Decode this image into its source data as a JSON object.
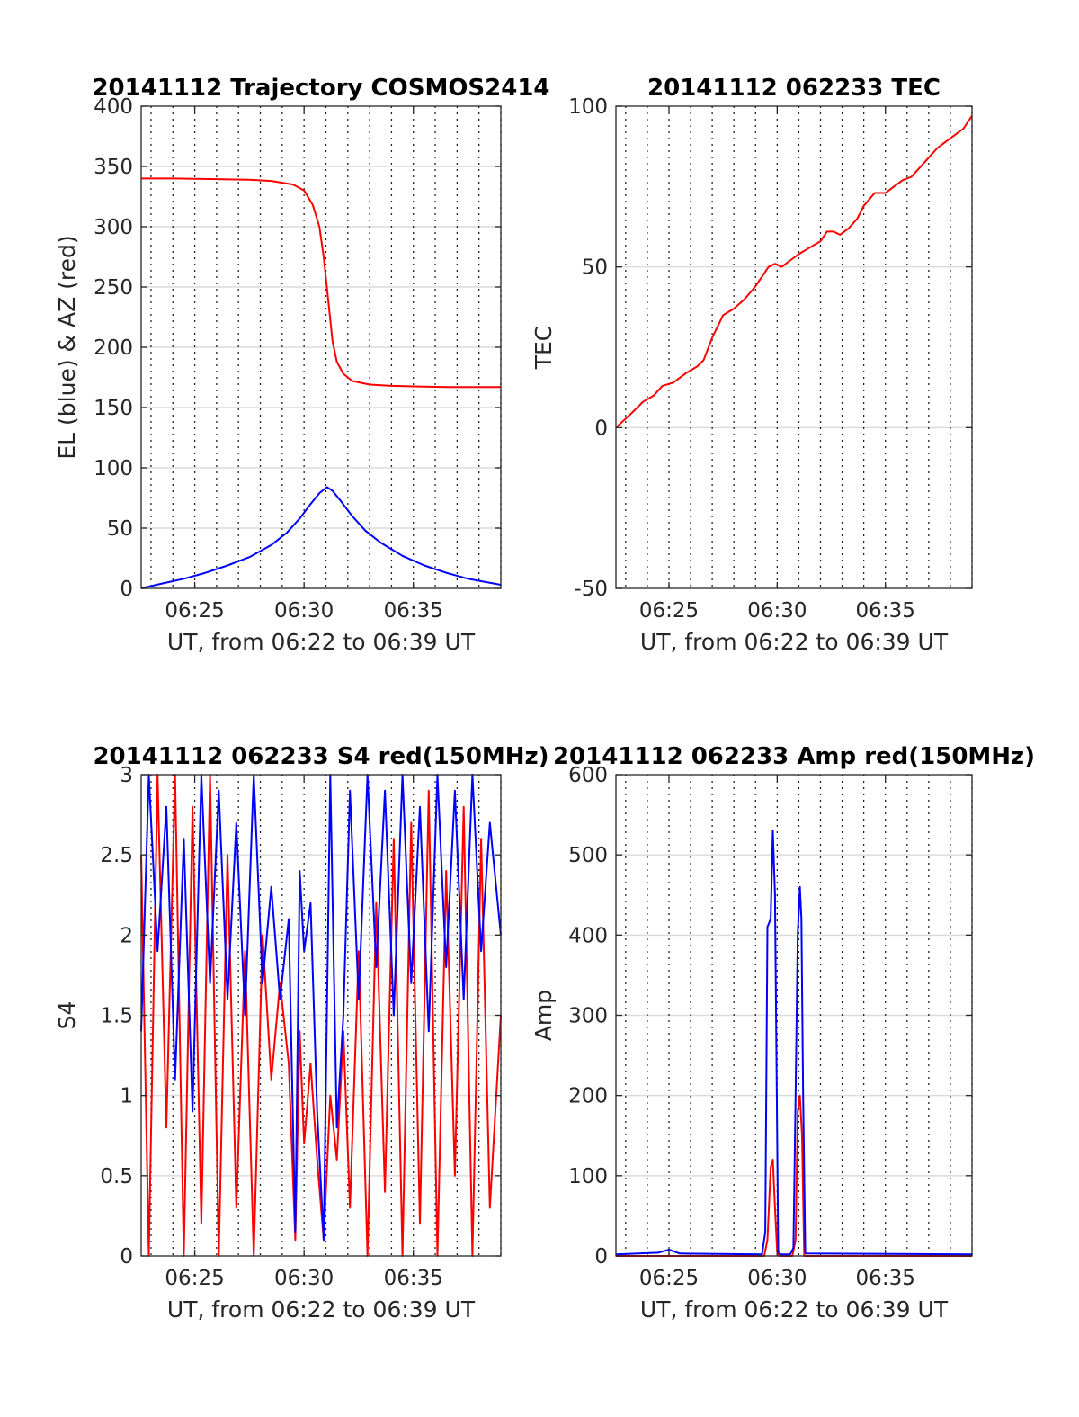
{
  "chart_data": [
    {
      "type": "line",
      "title": "20141112 Trajectory COSMOS2414",
      "xlabel": "UT, from 06:22 to 06:39 UT",
      "ylabel": "EL (blue) & AZ (red)",
      "xlim_minutes": [
        22.55,
        39.0
      ],
      "ylim": [
        0,
        400
      ],
      "yticks": [
        "0",
        "50",
        "100",
        "150",
        "200",
        "250",
        "300",
        "350",
        "400"
      ],
      "xticks": [
        {
          "label": "06:25",
          "minute": 25
        },
        {
          "label": "06:30",
          "minute": 30
        },
        {
          "label": "06:35",
          "minute": 35
        }
      ],
      "grid": true,
      "series": [
        {
          "color": "#ff0000",
          "x": [
            22.55,
            24,
            26,
            27.5,
            28.5,
            29.5,
            30,
            30.4,
            30.7,
            30.9,
            31.1,
            31.3,
            31.5,
            31.8,
            32.2,
            33,
            34,
            35,
            36.5,
            39.0
          ],
          "values": [
            340,
            340,
            339.5,
            339,
            338,
            335,
            330,
            318,
            300,
            275,
            240,
            205,
            188,
            178,
            172,
            169,
            168,
            167.5,
            167,
            167
          ]
        },
        {
          "color": "#0000ff",
          "x": [
            22.55,
            23.5,
            24.5,
            25.5,
            26.5,
            27.5,
            28.5,
            29.2,
            29.8,
            30.3,
            30.7,
            31.05,
            31.3,
            31.7,
            32.2,
            32.8,
            33.5,
            34.5,
            35.5,
            36.5,
            37.5,
            39.0
          ],
          "values": [
            0,
            4,
            8,
            13,
            19,
            26,
            36,
            46,
            58,
            70,
            79,
            84,
            81,
            72,
            60,
            48,
            38,
            27,
            19,
            13,
            8,
            3
          ]
        }
      ]
    },
    {
      "type": "line",
      "title": "20141112 062233 TEC",
      "xlabel": "UT, from 06:22 to 06:39 UT",
      "ylabel": "TEC",
      "xlim_minutes": [
        22.55,
        39.0
      ],
      "ylim": [
        -50,
        100
      ],
      "yticks": [
        "-50",
        "0",
        "50",
        "100"
      ],
      "xticks": [
        {
          "label": "06:25",
          "minute": 25
        },
        {
          "label": "06:30",
          "minute": 30
        },
        {
          "label": "06:35",
          "minute": 35
        }
      ],
      "grid": true,
      "series": [
        {
          "color": "#ff0000",
          "x": [
            22.55,
            23.2,
            23.8,
            24.3,
            24.7,
            25.2,
            25.8,
            26.3,
            26.6,
            27.0,
            27.5,
            28.0,
            28.5,
            29.0,
            29.3,
            29.6,
            29.9,
            30.2,
            30.6,
            31.0,
            31.5,
            32.0,
            32.3,
            32.6,
            32.9,
            33.3,
            33.7,
            34.0,
            34.5,
            35.0,
            35.4,
            35.8,
            36.2,
            36.6,
            37.0,
            37.4,
            37.8,
            38.2,
            38.6,
            39.0
          ],
          "values": [
            0,
            4,
            8,
            10,
            13,
            14,
            17,
            19,
            21,
            28,
            35,
            37,
            40,
            44,
            47,
            50,
            51,
            50,
            52,
            54,
            56,
            58,
            61,
            61,
            60,
            62,
            65,
            69,
            73,
            73,
            75,
            77,
            78,
            81,
            84,
            87,
            89,
            91,
            93,
            97
          ]
        }
      ]
    },
    {
      "type": "line",
      "title": "20141112 062233 S4 red(150MHz)",
      "xlabel": "UT, from 06:22 to 06:39 UT",
      "ylabel": "S4",
      "xlim_minutes": [
        22.55,
        39.0
      ],
      "ylim": [
        0,
        3
      ],
      "yticks": [
        "0",
        "0.5",
        "1",
        "1.5",
        "2",
        "2.5",
        "3"
      ],
      "xticks": [
        {
          "label": "06:25",
          "minute": 25
        },
        {
          "label": "06:30",
          "minute": 30
        },
        {
          "label": "06:35",
          "minute": 35
        }
      ],
      "grid": true,
      "series": [
        {
          "color": "#ff0000",
          "x": [
            22.55,
            22.9,
            23.3,
            23.7,
            24.1,
            24.5,
            24.9,
            25.3,
            25.7,
            26.1,
            26.5,
            26.9,
            27.3,
            27.7,
            28.1,
            28.5,
            28.9,
            29.3,
            29.6,
            29.8,
            30.0,
            30.3,
            30.6,
            30.9,
            31.2,
            31.5,
            31.8,
            32.1,
            32.5,
            32.9,
            33.3,
            33.7,
            34.1,
            34.5,
            34.9,
            35.3,
            35.7,
            36.1,
            36.5,
            36.9,
            37.3,
            37.7,
            38.1,
            38.5,
            39.0
          ],
          "values": [
            2.5,
            0,
            3,
            0.8,
            3,
            0,
            2.8,
            0.2,
            3,
            0,
            2.5,
            0.3,
            1.9,
            0,
            2.0,
            1.1,
            1.7,
            1.2,
            0.1,
            1.4,
            0.7,
            1.2,
            0.6,
            0.1,
            1.0,
            0.6,
            1.4,
            0.3,
            1.9,
            0,
            2.2,
            0.4,
            2.6,
            0,
            2.7,
            0.2,
            2.9,
            0,
            2.4,
            0.5,
            2.8,
            0,
            2.6,
            0.3,
            1.5
          ]
        },
        {
          "color": "#0000ff",
          "x": [
            22.55,
            22.9,
            23.3,
            23.7,
            24.1,
            24.5,
            24.9,
            25.3,
            25.7,
            26.1,
            26.5,
            26.9,
            27.3,
            27.7,
            28.1,
            28.5,
            28.9,
            29.3,
            29.6,
            29.8,
            30.0,
            30.3,
            30.6,
            30.9,
            31.2,
            31.5,
            31.8,
            32.1,
            32.5,
            32.9,
            33.3,
            33.7,
            34.1,
            34.5,
            34.9,
            35.3,
            35.7,
            36.1,
            36.5,
            36.9,
            37.3,
            37.7,
            38.1,
            38.5,
            39.0
          ],
          "values": [
            1.4,
            3,
            1.9,
            2.8,
            1.1,
            2.6,
            0.9,
            3,
            1.7,
            2.9,
            1.6,
            2.7,
            1.5,
            3,
            1.7,
            2.3,
            1.6,
            2.1,
            0.15,
            2.4,
            1.9,
            2.2,
            0.9,
            0.1,
            3,
            0.8,
            1.5,
            2.9,
            1.6,
            3,
            1.8,
            2.9,
            1.5,
            3,
            1.7,
            2.8,
            1.4,
            3,
            1.8,
            2.9,
            1.6,
            3,
            1.9,
            2.7,
            2.0
          ]
        }
      ]
    },
    {
      "type": "line",
      "title": "20141112 062233 Amp red(150MHz)",
      "xlabel": "UT, from 06:22 to 06:39 UT",
      "ylabel": "Amp",
      "xlim_minutes": [
        22.55,
        39.0
      ],
      "ylim": [
        0,
        600
      ],
      "yticks": [
        "0",
        "100",
        "200",
        "300",
        "400",
        "500",
        "600"
      ],
      "xticks": [
        {
          "label": "06:25",
          "minute": 25
        },
        {
          "label": "06:30",
          "minute": 30
        },
        {
          "label": "06:35",
          "minute": 35
        }
      ],
      "grid": true,
      "series": [
        {
          "color": "#ff0000",
          "x": [
            22.55,
            29.4,
            29.55,
            29.7,
            29.8,
            29.9,
            30.0,
            30.1,
            30.5,
            30.7,
            30.85,
            30.95,
            31.05,
            31.15,
            31.25,
            39.0
          ],
          "values": [
            0,
            0,
            20,
            110,
            120,
            60,
            5,
            0,
            0,
            0,
            20,
            180,
            200,
            150,
            0,
            0
          ]
        },
        {
          "color": "#0000ff",
          "x": [
            22.55,
            24.5,
            25.0,
            25.5,
            29.3,
            29.45,
            29.55,
            29.7,
            29.8,
            29.9,
            29.95,
            30.05,
            30.15,
            30.6,
            30.75,
            30.85,
            30.95,
            31.05,
            31.12,
            31.2,
            31.3,
            39.0
          ],
          "values": [
            2,
            4,
            8,
            3,
            2,
            30,
            410,
            420,
            530,
            450,
            300,
            5,
            2,
            2,
            10,
            200,
            400,
            460,
            420,
            200,
            3,
            2
          ]
        }
      ]
    }
  ]
}
